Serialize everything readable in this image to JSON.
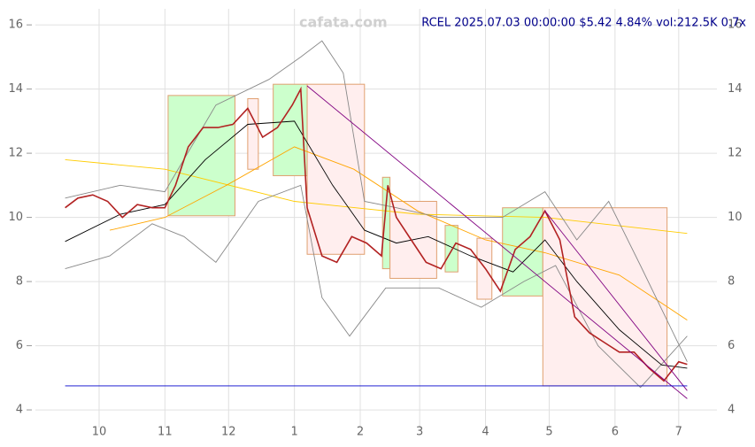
{
  "chart_data": {
    "type": "line",
    "title": "RCEL 2025.07.03 00:00:00 $5.42 4.84% vol:212.5K 0.7x",
    "watermark": "cafata.com",
    "xlim": [
      -30,
      291
    ],
    "ylim": [
      3.45,
      16.5
    ],
    "xticks": [
      {
        "value": 0,
        "label": "10"
      },
      {
        "value": 31,
        "label": "11"
      },
      {
        "value": 61,
        "label": "12"
      },
      {
        "value": 92,
        "label": "1"
      },
      {
        "value": 123,
        "label": "2"
      },
      {
        "value": 151,
        "label": "3"
      },
      {
        "value": 182,
        "label": "4"
      },
      {
        "value": 212,
        "label": "5"
      },
      {
        "value": 243,
        "label": "6"
      },
      {
        "value": 273,
        "label": "7"
      }
    ],
    "yticks": [
      4,
      6,
      8,
      10,
      12,
      14,
      16
    ],
    "grid": true,
    "boxes": [
      {
        "x": [
          32.5,
          64
        ],
        "y": [
          10.05,
          13.8
        ],
        "color": "#ccffcc"
      },
      {
        "x": [
          70,
          75
        ],
        "y": [
          11.5,
          13.7
        ],
        "color": "#ffeeee"
      },
      {
        "x": [
          82,
          98
        ],
        "y": [
          11.3,
          14.15
        ],
        "color": "#ccffcc"
      },
      {
        "x": [
          98,
          125
        ],
        "y": [
          8.85,
          14.15
        ],
        "color": "#ffeeee"
      },
      {
        "x": [
          133.5,
          137
        ],
        "y": [
          8.4,
          11.25
        ],
        "color": "#ccffcc"
      },
      {
        "x": [
          137,
          159
        ],
        "y": [
          8.1,
          10.5
        ],
        "color": "#ffeeee"
      },
      {
        "x": [
          163,
          169
        ],
        "y": [
          8.3,
          9.75
        ],
        "color": "#ccffcc"
      },
      {
        "x": [
          178,
          185
        ],
        "y": [
          7.45,
          9.35
        ],
        "color": "#ffeeee"
      },
      {
        "x": [
          190,
          209
        ],
        "y": [
          7.55,
          10.3
        ],
        "color": "#ccffcc"
      },
      {
        "x": [
          209,
          267.5
        ],
        "y": [
          4.75,
          10.3
        ],
        "color": "#ffeeee"
      }
    ],
    "series": [
      {
        "color": "#ffcc00",
        "x": [
          -16,
          31,
          92,
          150,
          210,
          277
        ],
        "values": [
          11.8,
          11.5,
          10.5,
          10.1,
          10.0,
          9.5
        ]
      },
      {
        "color": "#ffa500",
        "x": [
          5,
          31,
          60,
          92,
          120,
          150,
          182,
          210,
          245,
          277
        ],
        "values": [
          9.6,
          10.0,
          11.0,
          12.2,
          11.5,
          10.2,
          9.3,
          8.9,
          8.2,
          6.8
        ]
      },
      {
        "color": "#888888",
        "x": [
          -16,
          10,
          31,
          55,
          80,
          95,
          105,
          115,
          125,
          140,
          160,
          190,
          210,
          225,
          240,
          255,
          277
        ],
        "values": [
          10.6,
          11.0,
          10.8,
          13.5,
          14.3,
          15.0,
          15.5,
          14.5,
          10.5,
          10.3,
          10.0,
          10.0,
          10.8,
          9.3,
          10.5,
          8.5,
          5.5
        ]
      },
      {
        "color": "#888888",
        "x": [
          -16,
          5,
          25,
          40,
          55,
          75,
          95,
          105,
          118,
          135,
          160,
          180,
          200,
          215,
          235,
          255,
          277
        ],
        "values": [
          8.4,
          8.8,
          9.8,
          9.4,
          8.6,
          10.5,
          11.0,
          7.5,
          6.3,
          7.8,
          7.8,
          7.2,
          8.0,
          8.5,
          6.0,
          4.7,
          6.3
        ]
      },
      {
        "color": "#000000",
        "x": [
          -16,
          10,
          31,
          50,
          70,
          92,
          110,
          125,
          140,
          155,
          175,
          195,
          210,
          225,
          245,
          265,
          277
        ],
        "values": [
          9.25,
          10.1,
          10.4,
          11.8,
          12.9,
          13.0,
          11.0,
          9.6,
          9.2,
          9.4,
          8.8,
          8.3,
          9.3,
          8.0,
          6.5,
          5.4,
          5.3
        ]
      },
      {
        "color": "#b22222",
        "x": [
          -16,
          -10,
          -3,
          4,
          11,
          18,
          25,
          31,
          36,
          42,
          49,
          56,
          63,
          70,
          77,
          84,
          91,
          95,
          98,
          105,
          112,
          119,
          126,
          133,
          136,
          140,
          147,
          154,
          161,
          168,
          175,
          182,
          189,
          196,
          203,
          210,
          217,
          224,
          231,
          238,
          245,
          252,
          259,
          266,
          273,
          277
        ],
        "values": [
          10.3,
          10.6,
          10.7,
          10.5,
          10.0,
          10.4,
          10.3,
          10.3,
          11.0,
          12.2,
          12.8,
          12.8,
          12.9,
          13.4,
          12.5,
          12.8,
          13.5,
          14.0,
          10.3,
          8.8,
          8.6,
          9.4,
          9.2,
          8.8,
          11.0,
          10.0,
          9.3,
          8.6,
          8.4,
          9.2,
          9.0,
          8.4,
          7.7,
          9.0,
          9.4,
          10.2,
          9.3,
          6.9,
          6.4,
          6.1,
          5.8,
          5.8,
          5.3,
          4.9,
          5.5,
          5.42
        ]
      },
      {
        "color": "#800080",
        "x": [
          98,
          277
        ],
        "values": [
          14.1,
          4.35
        ]
      },
      {
        "color": "#800080",
        "x": [
          210,
          277
        ],
        "values": [
          10.2,
          4.6
        ]
      },
      {
        "color": "#0000cd",
        "x": [
          -16,
          277
        ],
        "values": [
          4.75,
          4.75
        ]
      }
    ]
  }
}
